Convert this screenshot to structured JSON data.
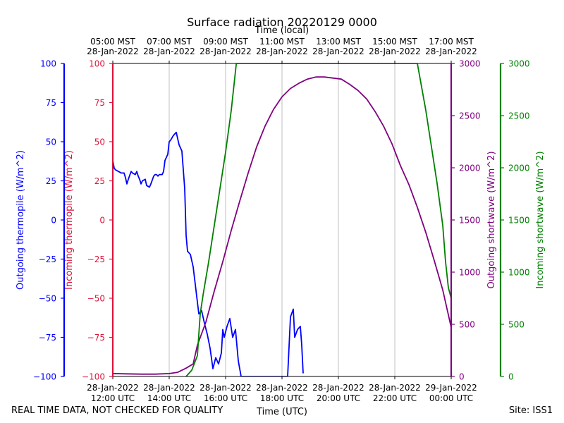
{
  "chart_data": {
    "type": "line",
    "title": "Surface radiation 20220129 0000",
    "top_axis_label": "Time (local)",
    "xlabel": "Time (UTC)",
    "x_range": [
      "2022-01-28 12:00 UTC",
      "2022-01-29 00:00 UTC"
    ],
    "x_ticks_bottom": [
      {
        "t": 12,
        "l1": "28-Jan-2022",
        "l2": "12:00 UTC"
      },
      {
        "t": 14,
        "l1": "28-Jan-2022",
        "l2": "14:00 UTC"
      },
      {
        "t": 16,
        "l1": "28-Jan-2022",
        "l2": "16:00 UTC"
      },
      {
        "t": 18,
        "l1": "28-Jan-2022",
        "l2": "18:00 UTC"
      },
      {
        "t": 20,
        "l1": "28-Jan-2022",
        "l2": "20:00 UTC"
      },
      {
        "t": 22,
        "l1": "28-Jan-2022",
        "l2": "22:00 UTC"
      },
      {
        "t": 24,
        "l1": "29-Jan-2022",
        "l2": "00:00 UTC"
      }
    ],
    "x_ticks_top": [
      {
        "t": 12,
        "l1": "05:00 MST",
        "l2": "28-Jan-2022"
      },
      {
        "t": 14,
        "l1": "07:00 MST",
        "l2": "28-Jan-2022"
      },
      {
        "t": 16,
        "l1": "09:00 MST",
        "l2": "28-Jan-2022"
      },
      {
        "t": 18,
        "l1": "11:00 MST",
        "l2": "28-Jan-2022"
      },
      {
        "t": 20,
        "l1": "13:00 MST",
        "l2": "28-Jan-2022"
      },
      {
        "t": 22,
        "l1": "15:00 MST",
        "l2": "28-Jan-2022"
      },
      {
        "t": 24,
        "l1": "17:00 MST",
        "l2": "28-Jan-2022"
      }
    ],
    "axes": [
      {
        "id": "out_thermo",
        "label": "Outgoing thermopile (W/m^2)",
        "color": "#0000ff",
        "range": [
          -100,
          100
        ],
        "ticks": [
          -100,
          -75,
          -50,
          -25,
          0,
          25,
          50,
          75,
          100
        ],
        "side": "left-outer"
      },
      {
        "id": "in_thermo",
        "label": "Incoming thermopile (W/m^2)",
        "color": "#dc143c",
        "range": [
          -100,
          100
        ],
        "ticks": [
          -100,
          -75,
          -50,
          -25,
          0,
          25,
          50,
          75,
          100
        ],
        "side": "left-inner"
      },
      {
        "id": "out_sw",
        "label": "Outgoing shortwave (W/m^2)",
        "color": "#800080",
        "range": [
          0,
          3000
        ],
        "ticks": [
          0,
          500,
          1000,
          1500,
          2000,
          2500,
          3000
        ],
        "side": "right-inner"
      },
      {
        "id": "in_sw",
        "label": "Incoming shortwave (W/m^2)",
        "color": "#008000",
        "range": [
          0,
          3000
        ],
        "ticks": [
          0,
          500,
          1000,
          1500,
          2000,
          2500,
          3000
        ],
        "side": "right-outer"
      }
    ],
    "grid": "vertical",
    "series": [
      {
        "name": "Outgoing thermopile",
        "axis": "out_thermo",
        "color": "#0000ff",
        "x": [
          12.0,
          12.05,
          12.1,
          12.2,
          12.3,
          12.4,
          12.45,
          12.5,
          12.55,
          12.65,
          12.7,
          12.8,
          12.85,
          12.9,
          12.95,
          13.0,
          13.05,
          13.15,
          13.2,
          13.3,
          13.35,
          13.45,
          13.5,
          13.55,
          13.6,
          13.65,
          13.75,
          13.8,
          13.85,
          13.95,
          14.0,
          14.05,
          14.15,
          14.25,
          14.35,
          14.45,
          14.55,
          14.6,
          14.65,
          14.75,
          14.85,
          14.95,
          15.05,
          15.15,
          15.25,
          15.35,
          15.45,
          15.55,
          15.65,
          15.75,
          15.85,
          15.9,
          15.95,
          16.05,
          16.15,
          16.25,
          16.35,
          16.45,
          16.55,
          16.65,
          16.75,
          16.85,
          16.95,
          17.05,
          17.15,
          17.25,
          17.35,
          17.45,
          17.55,
          17.65,
          17.75,
          17.85,
          17.95,
          18.1,
          18.2,
          18.3,
          18.4,
          18.45,
          18.55,
          18.65,
          18.7,
          18.75
        ],
        "y": [
          38,
          33,
          32,
          31,
          30,
          30,
          27,
          23,
          26,
          31,
          30,
          29,
          31,
          28,
          26,
          23,
          25,
          26,
          22,
          21,
          23,
          28,
          29,
          29,
          28,
          29,
          29,
          31,
          38,
          42,
          50,
          51,
          54,
          56,
          48,
          44,
          20,
          -10,
          -20,
          -22,
          -30,
          -45,
          -60,
          -58,
          -66,
          -73,
          -82,
          -95,
          -88,
          -92,
          -85,
          -70,
          -75,
          -68,
          -63,
          -75,
          -70,
          -90,
          -100,
          -100,
          -100,
          -100,
          -100,
          -100,
          -100,
          -100,
          -100,
          -100,
          -100,
          -100,
          -100,
          -100,
          -100,
          -100,
          -100,
          -62,
          -57,
          -75,
          -70,
          -68,
          -80,
          -98
        ]
      },
      {
        "name": "Outgoing shortwave",
        "axis": "out_sw",
        "color": "#800080",
        "x": [
          12.0,
          12.5,
          13.0,
          13.5,
          14.0,
          14.3,
          14.6,
          14.85,
          15.0,
          15.3,
          15.6,
          15.9,
          16.2,
          16.5,
          16.8,
          17.1,
          17.4,
          17.7,
          18.0,
          18.3,
          18.6,
          18.9,
          19.2,
          19.5,
          19.8,
          20.1,
          20.4,
          20.7,
          21.0,
          21.3,
          21.6,
          21.9,
          22.2,
          22.5,
          22.8,
          23.1,
          23.4,
          23.7,
          24.0
        ],
        "y": [
          28,
          25,
          22,
          22,
          28,
          40,
          80,
          120,
          300,
          520,
          820,
          1100,
          1400,
          1680,
          1950,
          2200,
          2400,
          2560,
          2680,
          2760,
          2810,
          2850,
          2870,
          2870,
          2860,
          2850,
          2800,
          2740,
          2660,
          2540,
          2400,
          2230,
          2020,
          1840,
          1620,
          1380,
          1110,
          830,
          470
        ]
      },
      {
        "name": "Incoming shortwave",
        "axis": "in_sw",
        "color": "#008000",
        "x": [
          14.6,
          14.8,
          15.0,
          15.1,
          15.2,
          15.4,
          15.6,
          15.8,
          16.0,
          16.2,
          16.38,
          22.8,
          22.9,
          23.1,
          23.3,
          23.5,
          23.7,
          23.8,
          23.9,
          24.0
        ],
        "y": [
          0,
          60,
          200,
          600,
          780,
          1100,
          1450,
          1800,
          2150,
          2550,
          3000,
          3000,
          2850,
          2550,
          2200,
          1850,
          1450,
          1100,
          850,
          750
        ]
      }
    ]
  },
  "footer": {
    "left": "REAL TIME DATA, NOT CHECKED FOR QUALITY",
    "right": "Site: ISS1"
  }
}
